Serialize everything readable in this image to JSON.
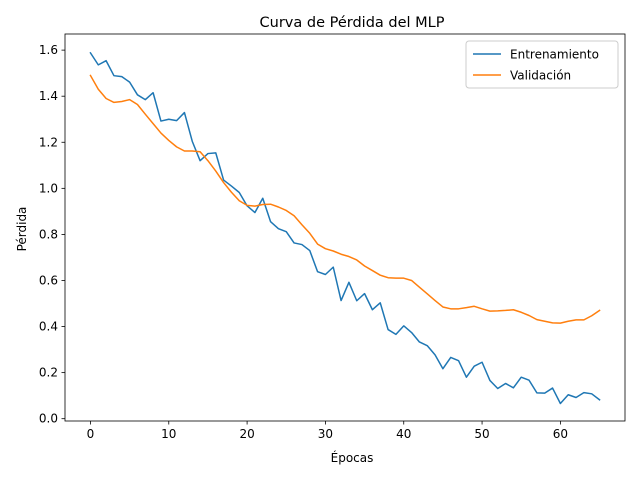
{
  "chart_data": {
    "type": "line",
    "title": "Curva de Pérdida del MLP",
    "xlabel": "Épocas",
    "ylabel": "Pérdida",
    "xlim": [
      -3.25,
      68.25
    ],
    "ylim": [
      -0.01,
      1.67
    ],
    "xticks": [
      0,
      10,
      20,
      30,
      40,
      50,
      60
    ],
    "yticks": [
      0.0,
      0.2,
      0.4,
      0.6,
      0.8,
      1.0,
      1.2,
      1.4,
      1.6
    ],
    "legend_position": "top-right",
    "grid": false,
    "x": [
      0,
      1,
      2,
      3,
      4,
      5,
      6,
      7,
      8,
      9,
      10,
      11,
      12,
      13,
      14,
      15,
      16,
      17,
      18,
      19,
      20,
      21,
      22,
      23,
      24,
      25,
      26,
      27,
      28,
      29,
      30,
      31,
      32,
      33,
      34,
      35,
      36,
      37,
      38,
      39,
      40,
      41,
      42,
      43,
      44,
      45,
      46,
      47,
      48,
      49,
      50,
      51,
      52,
      53,
      54,
      55,
      56,
      57,
      58,
      59,
      60,
      61,
      62,
      63,
      64,
      65
    ],
    "series": [
      {
        "name": "Entrenamiento",
        "color": "#1f77b4",
        "values": [
          1.588,
          1.536,
          1.554,
          1.489,
          1.485,
          1.461,
          1.406,
          1.385,
          1.415,
          1.292,
          1.3,
          1.294,
          1.329,
          1.204,
          1.12,
          1.151,
          1.154,
          1.036,
          1.01,
          0.982,
          0.924,
          0.895,
          0.957,
          0.855,
          0.825,
          0.812,
          0.763,
          0.756,
          0.73,
          0.638,
          0.626,
          0.658,
          0.513,
          0.592,
          0.512,
          0.543,
          0.473,
          0.503,
          0.387,
          0.366,
          0.403,
          0.374,
          0.333,
          0.317,
          0.277,
          0.217,
          0.266,
          0.252,
          0.18,
          0.228,
          0.245,
          0.166,
          0.131,
          0.153,
          0.134,
          0.18,
          0.167,
          0.112,
          0.111,
          0.133,
          0.066,
          0.104,
          0.092,
          0.113,
          0.108,
          0.082
        ]
      },
      {
        "name": "Validación",
        "color": "#ff7f0e",
        "values": [
          1.49,
          1.43,
          1.39,
          1.373,
          1.377,
          1.385,
          1.364,
          1.322,
          1.281,
          1.24,
          1.208,
          1.18,
          1.162,
          1.162,
          1.159,
          1.12,
          1.075,
          1.025,
          0.983,
          0.946,
          0.926,
          0.923,
          0.93,
          0.931,
          0.919,
          0.904,
          0.881,
          0.842,
          0.805,
          0.758,
          0.738,
          0.728,
          0.714,
          0.704,
          0.689,
          0.663,
          0.643,
          0.623,
          0.612,
          0.61,
          0.61,
          0.6,
          0.571,
          0.542,
          0.513,
          0.485,
          0.477,
          0.477,
          0.482,
          0.488,
          0.477,
          0.467,
          0.468,
          0.47,
          0.473,
          0.462,
          0.448,
          0.43,
          0.423,
          0.416,
          0.415,
          0.423,
          0.429,
          0.429,
          0.447,
          0.47
        ]
      }
    ]
  }
}
